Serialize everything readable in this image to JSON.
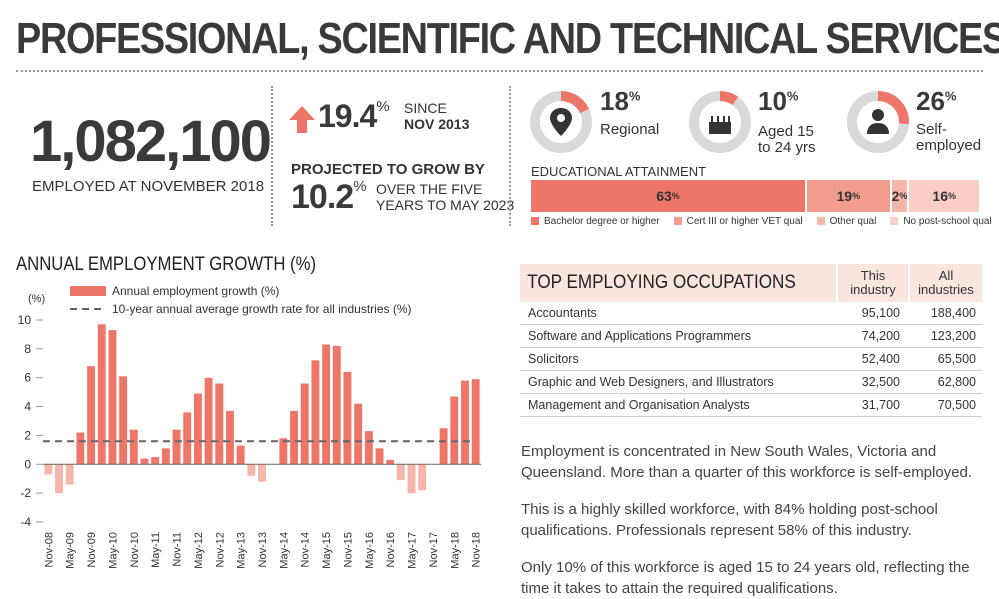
{
  "title": "PROFESSIONAL, SCIENTIFIC AND TECHNICAL SERVICES",
  "employed": {
    "value": "1,082,100",
    "caption": "EMPLOYED AT NOVEMBER 2018"
  },
  "growth": {
    "value": "19.4",
    "pct": "%",
    "since_label": "SINCE",
    "since_date": "NOV 2013",
    "arrow": "up-arrow-icon"
  },
  "projection": {
    "label": "PROJECTED TO GROW BY",
    "value": "10.2",
    "pct": "%",
    "text1": "OVER THE FIVE",
    "text2": "YEARS TO MAY 2023"
  },
  "donuts": [
    {
      "pct": "18",
      "sup": "%",
      "fraction": 0.18,
      "label1": "Regional",
      "label2": "",
      "icon": "location-pin-icon"
    },
    {
      "pct": "10",
      "sup": "%",
      "fraction": 0.1,
      "label1": "Aged 15",
      "label2": "to 24 yrs",
      "icon": "birthday-cake-icon"
    },
    {
      "pct": "26",
      "sup": "%",
      "fraction": 0.26,
      "label1": "Self-",
      "label2": "employed",
      "icon": "person-icon"
    }
  ],
  "education": {
    "title": "EDUCATIONAL ATTAINMENT",
    "segments": [
      {
        "label": "63",
        "sup": "%",
        "value": 63,
        "color": "#ee7668",
        "legend": "Bachelor degree or higher"
      },
      {
        "label": "19",
        "sup": "%",
        "value": 19,
        "color": "#f39d8f",
        "legend": "Cert III or higher VET qual"
      },
      {
        "label": "2",
        "sup": "%",
        "value": 2,
        "color": "#f6b5a9",
        "legend": "Other qual"
      },
      {
        "label": "16",
        "sup": "%",
        "value": 16,
        "color": "#f9cfc5",
        "legend": "No post-school qual"
      }
    ]
  },
  "chart_section_title": "ANNUAL EMPLOYMENT GROWTH (%)",
  "chart_data": {
    "type": "bar",
    "ylabel": "(%)",
    "ylim": [
      -4,
      10
    ],
    "yticks": [
      -4,
      -2,
      0,
      2,
      4,
      6,
      8,
      10
    ],
    "categories": [
      "Nov-08",
      "Feb-09",
      "May-09",
      "Aug-09",
      "Nov-09",
      "Feb-10",
      "May-10",
      "Aug-10",
      "Nov-10",
      "Feb-11",
      "May-11",
      "Aug-11",
      "Nov-11",
      "Feb-12",
      "May-12",
      "Aug-12",
      "Nov-12",
      "Feb-13",
      "May-13",
      "Aug-13",
      "Nov-13",
      "Feb-14",
      "May-14",
      "Aug-14",
      "Nov-14",
      "Feb-15",
      "May-15",
      "Aug-15",
      "Nov-15",
      "Feb-16",
      "May-16",
      "Aug-16",
      "Nov-16",
      "Feb-17",
      "May-17",
      "Aug-17",
      "Nov-17",
      "Feb-18",
      "May-18",
      "Aug-18",
      "Nov-18"
    ],
    "tick_labels": [
      "Nov-08",
      "May-09",
      "Nov-09",
      "May-10",
      "Nov-10",
      "May-11",
      "Nov-11",
      "May-12",
      "Nov-12",
      "May-13",
      "Nov-13",
      "May-14",
      "Nov-14",
      "May-15",
      "Nov-15",
      "May-16",
      "Nov-16",
      "May-17",
      "Nov-17",
      "May-18",
      "Nov-18"
    ],
    "series": [
      {
        "name": "Annual employment growth (%)",
        "color": "#ee7668",
        "values": [
          -0.7,
          -2.0,
          -1.4,
          2.2,
          6.8,
          9.7,
          9.3,
          6.1,
          2.4,
          0.4,
          0.5,
          1.1,
          2.4,
          3.6,
          4.9,
          6.0,
          5.6,
          3.7,
          1.3,
          -0.8,
          -1.2,
          0.0,
          1.8,
          3.7,
          5.6,
          7.2,
          8.3,
          8.2,
          6.4,
          4.2,
          2.3,
          1.1,
          0.3,
          -1.1,
          -2.0,
          -1.8,
          0.0,
          2.5,
          4.7,
          5.8,
          5.9
        ]
      },
      {
        "name": "10-year annual average growth rate for all industries (%)",
        "color": "#666666",
        "style": "dashed",
        "value": 1.6
      }
    ]
  },
  "occupations": {
    "title": "TOP EMPLOYING OCCUPATIONS",
    "col1": "This industry",
    "col2": "All industries",
    "rows": [
      {
        "name": "Accountants",
        "this": "95,100",
        "all": "188,400"
      },
      {
        "name": "Software and Applications Programmers",
        "this": "74,200",
        "all": "123,200"
      },
      {
        "name": "Solicitors",
        "this": "52,400",
        "all": "65,500"
      },
      {
        "name": "Graphic and Web Designers, and Illustrators",
        "this": "32,500",
        "all": "62,800"
      },
      {
        "name": "Management and Organisation Analysts",
        "this": "31,700",
        "all": "70,500"
      }
    ]
  },
  "paragraphs": [
    "Employment is concentrated in New South Wales, Victoria and Queensland. More than a quarter of this workforce is self-employed.",
    "This is a highly skilled workforce, with 84% holding post-school qualifications. Professionals represent 58% of this industry.",
    "Only 10% of this workforce is aged 15 to 24 years old, reflecting the time it takes to attain the required qualifications."
  ]
}
